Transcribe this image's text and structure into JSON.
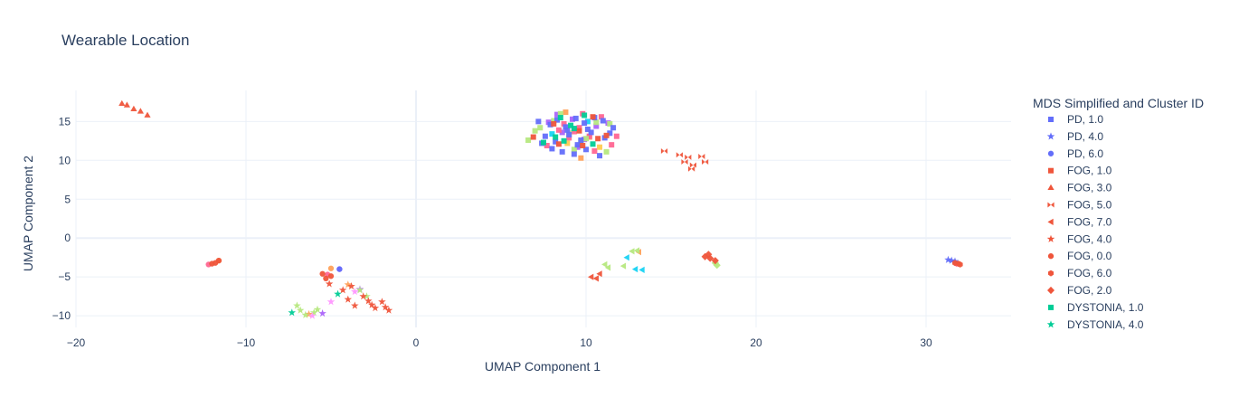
{
  "chart_data": {
    "type": "scatter",
    "title": "Wearable Location",
    "xlabel": "UMAP Component 1",
    "ylabel": "UMAP Component 2",
    "xlim": [
      -20,
      35
    ],
    "ylim": [
      -11.5,
      19
    ],
    "xticks": [
      -20,
      -10,
      0,
      10,
      20,
      30
    ],
    "yticks": [
      -10,
      -5,
      0,
      5,
      10,
      15
    ],
    "xtick_labels": [
      "−20",
      "−10",
      "0",
      "10",
      "20",
      "30"
    ],
    "ytick_labels": [
      "−10",
      "−5",
      "0",
      "5",
      "10",
      "15"
    ],
    "grid": true,
    "legend": {
      "title": "MDS Simplified and Cluster ID",
      "placement": "right"
    },
    "series": [
      {
        "name": "PD, 1.0",
        "color": "#636efa",
        "symbol": "square",
        "x": [
          7.2,
          7.9,
          8.3,
          8.8,
          9.4,
          9.9,
          10.5,
          11.0,
          11.6,
          7.6,
          8.2,
          9.0,
          9.7,
          10.3,
          11.1,
          8.0,
          8.6,
          9.3,
          10.0,
          10.8,
          7.4,
          9.5,
          10.1,
          8.9,
          11.4
        ],
        "y": [
          15.0,
          14.6,
          15.2,
          14.3,
          15.4,
          14.8,
          15.5,
          15.1,
          14.2,
          13.1,
          12.4,
          13.3,
          12.6,
          13.6,
          12.9,
          11.5,
          11.1,
          10.8,
          11.4,
          10.6,
          12.2,
          12.0,
          14.0,
          13.9,
          13.5
        ]
      },
      {
        "name": "PD, 4.0",
        "color": "#636efa",
        "symbol": "star",
        "x": [
          31.3,
          31.5,
          31.7
        ],
        "y": [
          -2.8,
          -2.9,
          -3.0
        ]
      },
      {
        "name": "PD, 6.0",
        "color": "#636efa",
        "symbol": "circle",
        "x": [
          -4.5
        ],
        "y": [
          -4.0
        ]
      },
      {
        "name": "FOG, 1.0",
        "color": "#ef553b",
        "symbol": "square",
        "x": [
          6.9,
          8.4,
          9.6,
          10.7,
          8.1,
          9.8,
          10.4,
          11.2
        ],
        "y": [
          13.0,
          12.1,
          13.8,
          12.8,
          14.7,
          11.9,
          15.6,
          13.2
        ]
      },
      {
        "name": "FOG, 3.0",
        "color": "#ef553b",
        "symbol": "triangle-up",
        "x": [
          -17.3,
          -17.0,
          -16.6,
          -16.2,
          -15.8
        ],
        "y": [
          17.3,
          17.1,
          16.6,
          16.3,
          15.8
        ]
      },
      {
        "name": "FOG, 5.0",
        "color": "#ef553b",
        "symbol": "bowtie",
        "x": [
          14.6,
          15.5,
          16.0,
          16.3,
          16.8,
          17.0,
          15.8,
          16.2
        ],
        "y": [
          11.2,
          10.7,
          10.4,
          9.4,
          10.5,
          9.8,
          9.8,
          8.9
        ]
      },
      {
        "name": "FOG, 7.0",
        "color": "#ef553b",
        "symbol": "triangle-left",
        "x": [
          10.3,
          10.6,
          10.8
        ],
        "y": [
          -5.0,
          -5.2,
          -4.6
        ]
      },
      {
        "name": "FOG, 4.0",
        "color": "#ef553b",
        "symbol": "star",
        "x": [
          -5.1,
          -4.3,
          -3.8,
          -3.6,
          -2.8,
          -2.4,
          -2.0,
          -1.8,
          -1.6,
          -2.6,
          -3.1,
          -4.0
        ],
        "y": [
          -5.9,
          -6.7,
          -6.2,
          -8.7,
          -8.1,
          -9.0,
          -8.2,
          -8.9,
          -9.3,
          -8.6,
          -7.5,
          -7.9
        ]
      },
      {
        "name": "FOG, 0.0",
        "color": "#ef553b",
        "symbol": "circle",
        "x": [
          -12.0,
          -11.8,
          -11.6,
          -5.5,
          -5.3,
          -5.0
        ],
        "y": [
          -3.3,
          -3.2,
          -2.9,
          -4.6,
          -5.2,
          -4.9
        ]
      },
      {
        "name": "FOG, 6.0",
        "color": "#ef553b",
        "symbol": "hexagon",
        "x": [
          31.7,
          31.9,
          32.0
        ],
        "y": [
          -3.2,
          -3.3,
          -3.4
        ]
      },
      {
        "name": "FOG, 2.0",
        "color": "#ef553b",
        "symbol": "diamond",
        "x": [
          17.0,
          17.3,
          17.6,
          17.2
        ],
        "y": [
          -2.4,
          -2.6,
          -2.9,
          -2.1
        ]
      },
      {
        "name": "DYSTONIA, 1.0",
        "color": "#00cc96",
        "symbol": "square",
        "x": [
          7.5,
          8.2,
          8.7,
          9.3,
          9.9,
          10.4,
          8.5,
          9.1
        ],
        "y": [
          12.3,
          13.0,
          12.5,
          14.1,
          15.8,
          12.1,
          15.5,
          14.5
        ]
      },
      {
        "name": "DYSTONIA, 4.0",
        "color": "#00cc96",
        "symbol": "star",
        "x": [
          -7.3,
          -4.6
        ],
        "y": [
          -9.6,
          -7.2
        ]
      }
    ],
    "extra_traces": [
      {
        "color": "#ab63fa",
        "symbol": "square",
        "x": [
          7.8,
          8.6,
          9.2,
          9.9,
          10.6,
          8.3,
          9.5,
          11.3
        ],
        "y": [
          14.9,
          13.6,
          15.3,
          12.7,
          14.4,
          15.9,
          11.7,
          14.8
        ]
      },
      {
        "color": "#ab63fa",
        "symbol": "star",
        "x": [
          -5.5,
          -3.3
        ],
        "y": [
          -9.7,
          -6.6
        ]
      },
      {
        "color": "#ab63fa",
        "symbol": "circle",
        "x": [
          -4.5
        ],
        "y": [
          -4.0
        ]
      },
      {
        "color": "#ffa15a",
        "symbol": "square",
        "x": [
          8.8,
          9.7,
          10.2
        ],
        "y": [
          16.2,
          10.3,
          13.0
        ]
      },
      {
        "color": "#ffa15a",
        "symbol": "star",
        "x": [
          -6.3,
          -4.0
        ],
        "y": [
          -9.8,
          -6.0
        ]
      },
      {
        "color": "#ffa15a",
        "symbol": "circle",
        "x": [
          -11.6,
          -5.0
        ],
        "y": [
          -2.9,
          -3.9
        ]
      },
      {
        "color": "#ffa15a",
        "symbol": "triangle-left",
        "x": [
          13.1
        ],
        "y": [
          -1.8
        ]
      },
      {
        "color": "#19d3f3",
        "symbol": "square",
        "x": [
          8.0,
          10.1
        ],
        "y": [
          13.4,
          15.0
        ]
      },
      {
        "color": "#19d3f3",
        "symbol": "triangle-left",
        "x": [
          12.4,
          12.9,
          13.3
        ],
        "y": [
          -2.5,
          -4.0,
          -4.1
        ]
      },
      {
        "color": "#ff6692",
        "symbol": "square",
        "x": [
          8.4,
          9.0,
          9.6,
          10.2,
          10.9,
          11.5,
          8.7,
          9.8,
          10.5,
          11.8,
          7.7,
          9.3
        ],
        "y": [
          13.9,
          12.9,
          14.2,
          13.1,
          15.6,
          12.0,
          14.7,
          16.0,
          11.2,
          13.1,
          11.9,
          13.7
        ]
      },
      {
        "color": "#ff6692",
        "symbol": "circle",
        "x": [
          -12.2,
          -5.2
        ],
        "y": [
          -3.4,
          -4.7
        ]
      },
      {
        "color": "#ff6692",
        "symbol": "hexagon",
        "x": [
          31.8
        ],
        "y": [
          -3.3
        ]
      },
      {
        "color": "#b6e880",
        "symbol": "square",
        "x": [
          6.6,
          7.3,
          8.1,
          9.0,
          9.7,
          10.6,
          11.2,
          7.0,
          8.5,
          10.0,
          11.4,
          9.3
        ],
        "y": [
          12.6,
          14.2,
          15.1,
          13.5,
          12.4,
          14.9,
          11.1,
          13.8,
          16.0,
          12.8,
          14.7,
          11.4
        ]
      },
      {
        "color": "#b6e880",
        "symbol": "triangle-left",
        "x": [
          11.1,
          11.3,
          12.2,
          12.7,
          13.0
        ],
        "y": [
          -3.4,
          -3.8,
          -3.6,
          -1.7,
          -1.6
        ]
      },
      {
        "color": "#b6e880",
        "symbol": "star",
        "x": [
          -7.0,
          -6.8,
          -6.5,
          -6.0,
          -5.8,
          -3.3,
          -2.9
        ],
        "y": [
          -8.7,
          -9.3,
          -9.9,
          -9.6,
          -9.2,
          -6.7,
          -7.5
        ]
      },
      {
        "color": "#b6e880",
        "symbol": "diamond",
        "x": [
          17.6,
          17.7
        ],
        "y": [
          -3.2,
          -3.5
        ]
      },
      {
        "color": "#ff97ff",
        "symbol": "star",
        "x": [
          -6.1,
          -5.0,
          -3.6
        ],
        "y": [
          -10.0,
          -8.2,
          -6.9
        ]
      },
      {
        "color": "#fecb52",
        "symbol": "square",
        "x": [
          8.9,
          10.8
        ],
        "y": [
          12.2,
          11.7
        ]
      }
    ]
  }
}
